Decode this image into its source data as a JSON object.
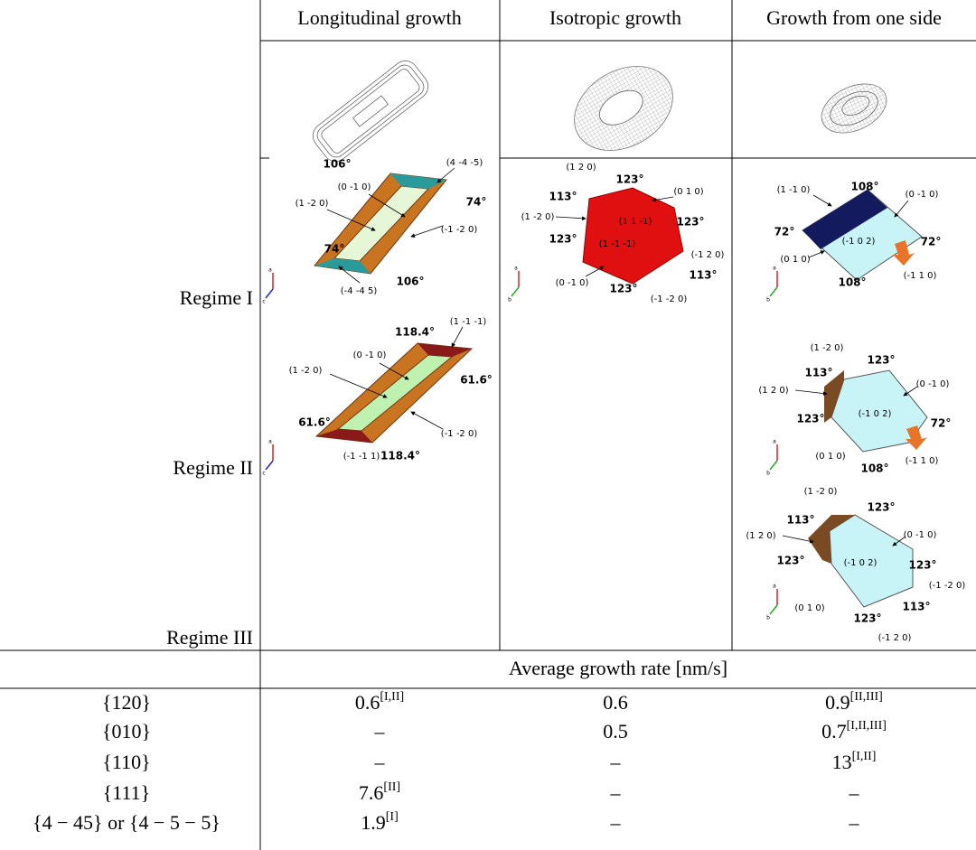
{
  "header": {
    "columns": [
      "Longitudinal growth",
      "Isotropic growth",
      "Growth from one side"
    ]
  },
  "regimes": [
    "Regime I",
    "Regime II",
    "Regime III"
  ],
  "diagrams": [
    {
      "labels": [
        "106°",
        "(4 -4 -5)",
        "(0 -1 0)",
        "(1 -2 0)",
        "74°",
        "74°",
        "(-1 -2 0)",
        "106°",
        "(-4 -4 5)"
      ],
      "axes": [
        "a",
        "c"
      ]
    },
    {
      "labels": [
        "118.4°",
        "(1 -1 -1)",
        "(0 -1  0)",
        "(1 -2  0)",
        "61.6°",
        "61.6°",
        "(-1 -2  0)",
        "(-1 -1  1)",
        "118.4°"
      ],
      "axes": [
        "a",
        "c"
      ]
    },
    {
      "labels": [
        "(1 2 0)",
        "123°",
        "(0 1 0)",
        "113°",
        "(1 -2 0)",
        "(1  1 -1)",
        "123°",
        "123°",
        "(1 -1 -1)",
        "(-1 2 0)",
        "113°",
        "(0 -1 0)",
        "123°",
        "(-1 -2 0)"
      ],
      "axes": [
        "a",
        "b"
      ]
    },
    {
      "labels": [
        "(1 -1  0)",
        "108°",
        "(0 -1 0)",
        "72°",
        "(-1 0 2)",
        "72°",
        "(0 1 0)",
        "(-1 1 0)",
        "108°"
      ],
      "axes": [
        "a",
        "b"
      ]
    },
    {
      "labels": [
        "(1 -2  0)",
        "123°",
        "113°",
        "(0 -1 0)",
        "(1 2 0)",
        "123°",
        "(-1 0 2)",
        "72°",
        "(0 1 0)",
        "108°",
        "(-1 1 0)"
      ],
      "axes": [
        "a",
        "b"
      ]
    },
    {
      "labels": [
        "(1 -2  0)",
        "123°",
        "113°",
        "(0 -1 0)",
        "(1 2 0)",
        "123°",
        "(-1 0 2)",
        "123°",
        "(-1 -2 0)",
        "(0 1 0)",
        "113°",
        "123°",
        "(-1 2 0)"
      ],
      "axes": [
        "a",
        "b"
      ]
    }
  ],
  "rate_table": {
    "title": "Average growth rate [nm/s]",
    "rows": [
      {
        "facet": "{120}",
        "cells": [
          {
            "value": "0.6",
            "note": "[I,II]"
          },
          {
            "value": "0.6"
          },
          {
            "value": "0.9",
            "note": "[II,III]"
          }
        ]
      },
      {
        "facet": "{010}",
        "cells": [
          {
            "value": "–"
          },
          {
            "value": "0.5"
          },
          {
            "value": "0.7",
            "note": "[I,II,III]"
          }
        ]
      },
      {
        "facet": "{110}",
        "cells": [
          {
            "value": "–"
          },
          {
            "value": "–"
          },
          {
            "value": "13",
            "note": "[I,II]"
          }
        ]
      },
      {
        "facet": "{111}",
        "cells": [
          {
            "value": "7.6",
            "note": "[II]"
          },
          {
            "value": "–"
          },
          {
            "value": "–"
          }
        ]
      },
      {
        "facet": "{4 − 45} or {4 − 5 − 5}",
        "cells": [
          {
            "value": "1.9",
            "note": "[I]"
          },
          {
            "value": "–"
          },
          {
            "value": "–"
          }
        ]
      }
    ]
  }
}
